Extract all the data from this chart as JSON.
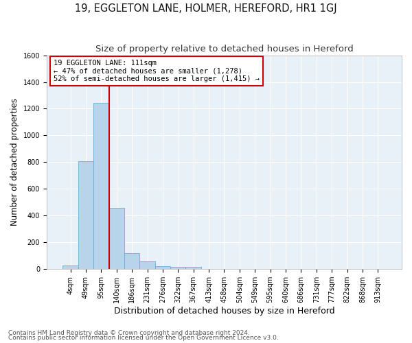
{
  "title": "19, EGGLETON LANE, HOLMER, HEREFORD, HR1 1GJ",
  "subtitle": "Size of property relative to detached houses in Hereford",
  "xlabel": "Distribution of detached houses by size in Hereford",
  "ylabel": "Number of detached properties",
  "footnote1": "Contains HM Land Registry data © Crown copyright and database right 2024.",
  "footnote2": "Contains public sector information licensed under the Open Government Licence v3.0.",
  "bar_labels": [
    "4sqm",
    "49sqm",
    "95sqm",
    "140sqm",
    "186sqm",
    "231sqm",
    "276sqm",
    "322sqm",
    "367sqm",
    "413sqm",
    "458sqm",
    "504sqm",
    "549sqm",
    "595sqm",
    "640sqm",
    "686sqm",
    "731sqm",
    "777sqm",
    "822sqm",
    "868sqm",
    "913sqm"
  ],
  "bar_values": [
    25,
    805,
    1245,
    460,
    120,
    58,
    22,
    18,
    14,
    0,
    0,
    0,
    0,
    0,
    0,
    0,
    0,
    0,
    0,
    0,
    0
  ],
  "bar_color": "#b8d4eb",
  "bar_edge_color": "#6aaed6",
  "ylim": [
    0,
    1600
  ],
  "yticks": [
    0,
    200,
    400,
    600,
    800,
    1000,
    1200,
    1400,
    1600
  ],
  "vline_x_index": 2.5,
  "vline_color": "#cc0000",
  "annotation_line1": "19 EGGLETON LANE: 111sqm",
  "annotation_line2": "← 47% of detached houses are smaller (1,278)",
  "annotation_line3": "52% of semi-detached houses are larger (1,415) →",
  "annotation_box_color": "#cc0000",
  "background_color": "#e8f0f8",
  "figure_bg": "#ffffff",
  "grid_color": "#ffffff",
  "title_fontsize": 10.5,
  "subtitle_fontsize": 9.5,
  "ylabel_fontsize": 8.5,
  "xlabel_fontsize": 9,
  "tick_fontsize": 7,
  "footnote_fontsize": 6.5
}
